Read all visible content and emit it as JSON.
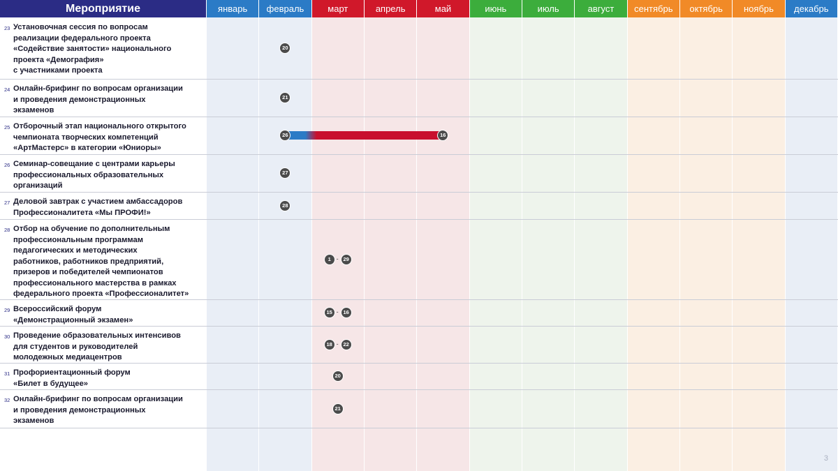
{
  "header": {
    "title": "Мероприятие"
  },
  "months": [
    {
      "label": "январь",
      "head_color": "#2b7bc6",
      "bg_color": "#e9eef6"
    },
    {
      "label": "февраль",
      "head_color": "#2b7bc6",
      "bg_color": "#e9eef6"
    },
    {
      "label": "март",
      "head_color": "#d0182a",
      "bg_color": "#f6e6e7"
    },
    {
      "label": "апрель",
      "head_color": "#d0182a",
      "bg_color": "#f6e6e7"
    },
    {
      "label": "май",
      "head_color": "#d0182a",
      "bg_color": "#f6e6e7"
    },
    {
      "label": "июнь",
      "head_color": "#3cad3c",
      "bg_color": "#eef4ec"
    },
    {
      "label": "июль",
      "head_color": "#3cad3c",
      "bg_color": "#eef4ec"
    },
    {
      "label": "август",
      "head_color": "#3cad3c",
      "bg_color": "#eef4ec"
    },
    {
      "label": "сентябрь",
      "head_color": "#f18a27",
      "bg_color": "#fbefe3"
    },
    {
      "label": "октябрь",
      "head_color": "#f18a27",
      "bg_color": "#fbefe3"
    },
    {
      "label": "ноябрь",
      "head_color": "#f18a27",
      "bg_color": "#fbefe3"
    },
    {
      "label": "декабрь",
      "head_color": "#2b7bc6",
      "bg_color": "#e9eef6"
    }
  ],
  "events": [
    {
      "num": "23",
      "text": "Установочная сессия по вопросам\nреализации федерального проекта\n«Содействие занятости» национального\nпроекта «Демография»\nс участниками проекта",
      "markers": [
        {
          "month": 2,
          "start": "20"
        }
      ]
    },
    {
      "num": "24",
      "text": "Онлайн-брифинг по вопросам организации\nи проведения демонстрационных\nэкзаменов",
      "markers": [
        {
          "month": 2,
          "start": "21"
        }
      ]
    },
    {
      "num": "25",
      "text": "Отборочный этап национального открытого\nчемпионата творческих компетенций\n«АртМастерс» в категории «Юниоры»",
      "markers": [
        {
          "month": 2,
          "start": "26",
          "end_month": 5,
          "end": "16",
          "bar": true
        }
      ]
    },
    {
      "num": "26",
      "text": "Семинар-совещание с центрами карьеры\nпрофессиональных образовательных\nорганизаций",
      "markers": [
        {
          "month": 2,
          "start": "27"
        }
      ]
    },
    {
      "num": "27",
      "text": "Деловой завтрак с участием амбассадоров\nПрофессионалитета «Мы ПРОФИ!»",
      "markers": [
        {
          "month": 2,
          "start": "28"
        }
      ]
    },
    {
      "num": "28",
      "text": "Отбор на обучение по дополнительным\nпрофессиональным программам\nпедагогических и методических\nработников, работников предприятий,\nпризеров и победителей чемпионатов\nпрофессионального мастерства в рамках\nфедерального проекта «Профессионалитет»",
      "markers": [
        {
          "month": 3,
          "start": "1",
          "end": "29"
        }
      ]
    },
    {
      "num": "29",
      "text": "Всероссийский форум\n«Демонстрационный экзамен»",
      "markers": [
        {
          "month": 3,
          "start": "15",
          "end": "16"
        }
      ]
    },
    {
      "num": "30",
      "text": "Проведение образовательных интенсивов\nдля студентов и руководителей\nмолодежных медиацентров",
      "markers": [
        {
          "month": 3,
          "start": "18",
          "end": "22"
        }
      ]
    },
    {
      "num": "31",
      "text": "Профориентационный форум\n«Билет в будущее»",
      "markers": [
        {
          "month": 3,
          "start": "20"
        }
      ]
    },
    {
      "num": "32",
      "text": "Онлайн-брифинг по вопросам организации\nи проведения демонстрационных\nэкзаменов",
      "markers": [
        {
          "month": 3,
          "start": "21"
        }
      ]
    }
  ],
  "footer": {
    "page_number": "3"
  },
  "colors": {
    "header_title_bg": "#2b2c85",
    "dot": "#4b4b4b",
    "bar_start": "#2b7bc6",
    "bar_end": "#c8102e"
  }
}
